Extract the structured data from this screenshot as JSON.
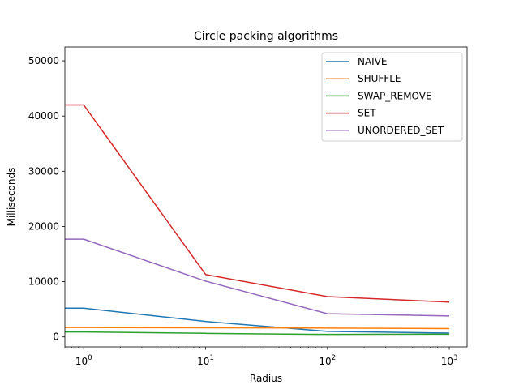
{
  "chart_data": {
    "type": "line",
    "title": "Circle packing algorithms",
    "xlabel": "Radius",
    "ylabel": "Milliseconds",
    "xscale": "log",
    "xlim": [
      0.7,
      1400
    ],
    "ylim": [
      -1800,
      52500
    ],
    "grid": false,
    "legend_position": "top-right",
    "x": [
      0.5,
      1,
      10,
      100,
      1000
    ],
    "x_ticks": [
      {
        "value": 1,
        "base": "10",
        "exp": "0"
      },
      {
        "value": 10,
        "base": "10",
        "exp": "1"
      },
      {
        "value": 100,
        "base": "10",
        "exp": "2"
      },
      {
        "value": 1000,
        "base": "10",
        "exp": "3"
      }
    ],
    "y_ticks": [
      {
        "value": 0,
        "label": "0"
      },
      {
        "value": 10000,
        "label": "10000"
      },
      {
        "value": 20000,
        "label": "20000"
      },
      {
        "value": 30000,
        "label": "30000"
      },
      {
        "value": 40000,
        "label": "40000"
      },
      {
        "value": 50000,
        "label": "50000"
      }
    ],
    "series": [
      {
        "name": "NAIVE",
        "color": "#1f77b4",
        "values": [
          5200,
          5200,
          2800,
          1000,
          700
        ]
      },
      {
        "name": "SHUFFLE",
        "color": "#ff7f0e",
        "values": [
          1700,
          1700,
          1650,
          1600,
          1500
        ]
      },
      {
        "name": "SWAP_REMOVE",
        "color": "#2ca02c",
        "values": [
          900,
          900,
          650,
          450,
          500
        ]
      },
      {
        "name": "SET",
        "color": "#d62728",
        "values": [
          42000,
          42000,
          11300,
          7300,
          6300
        ]
      },
      {
        "name": "UNORDERED_SET",
        "color": "#9467bd",
        "values": [
          17700,
          17700,
          10100,
          4200,
          3800
        ]
      }
    ]
  }
}
